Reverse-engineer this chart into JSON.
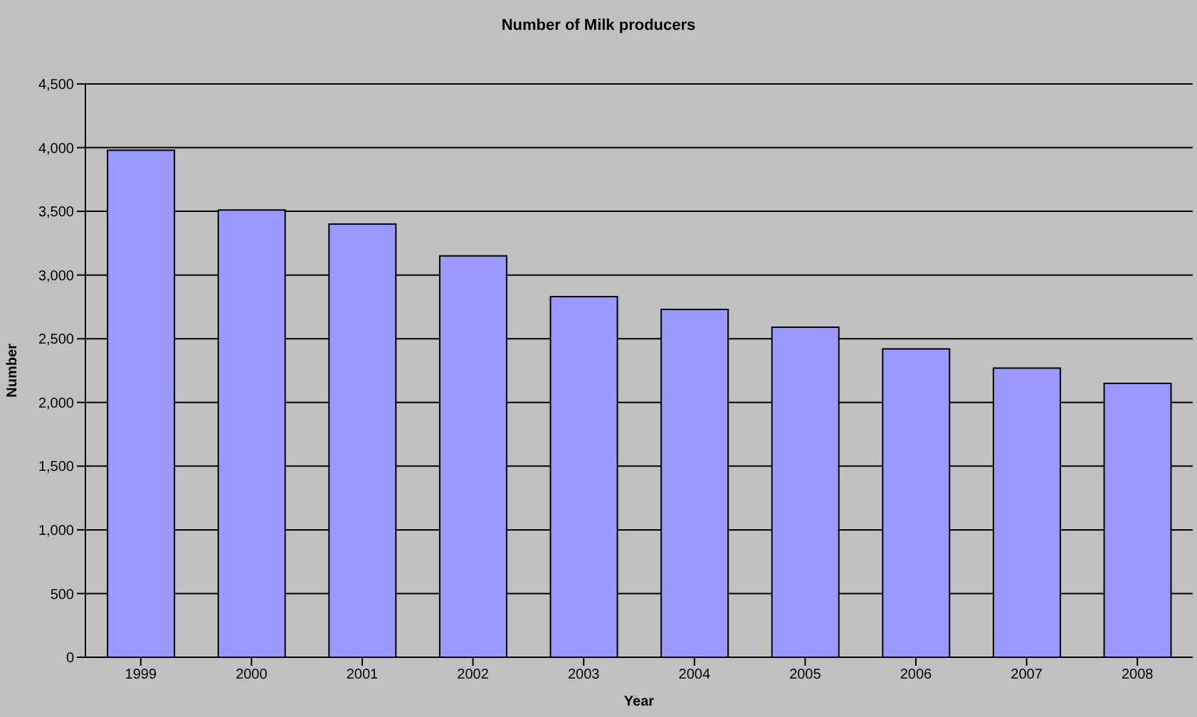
{
  "chart_data": {
    "type": "bar",
    "title": "Number of Milk producers",
    "xlabel": "Year",
    "ylabel": "Number",
    "categories": [
      "1999",
      "2000",
      "2001",
      "2002",
      "2003",
      "2004",
      "2005",
      "2006",
      "2007",
      "2008"
    ],
    "values": [
      3980,
      3510,
      3400,
      3150,
      2830,
      2730,
      2590,
      2420,
      2270,
      2150
    ],
    "color": "#9999ff",
    "ylim": [
      0,
      4500
    ],
    "yticks": [
      {
        "value": 0,
        "label": "0"
      },
      {
        "value": 500,
        "label": "500"
      },
      {
        "value": 1000,
        "label": "1,000"
      },
      {
        "value": 1500,
        "label": "1,500"
      },
      {
        "value": 2000,
        "label": "2,000"
      },
      {
        "value": 2500,
        "label": "2,500"
      },
      {
        "value": 3000,
        "label": "3,000"
      },
      {
        "value": 3500,
        "label": "3,500"
      },
      {
        "value": 4000,
        "label": "4,000"
      },
      {
        "value": 4500,
        "label": "4,500"
      }
    ],
    "grid": "y",
    "legend": false
  }
}
